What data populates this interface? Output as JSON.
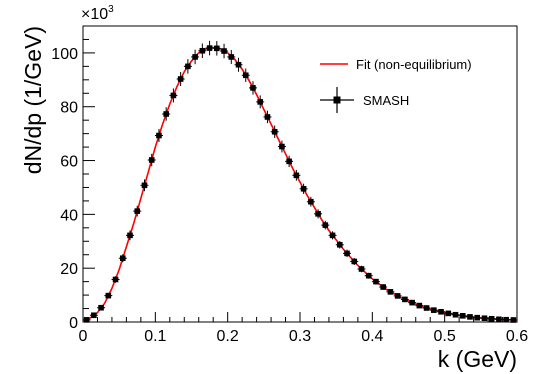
{
  "chart_data": {
    "type": "scatter",
    "title": "",
    "xlabel": "k (GeV)",
    "ylabel": "dN/dp (1/GeV)",
    "y_multiplier_label": "×10",
    "y_multiplier_exponent": "3",
    "xlim": [
      0,
      0.6
    ],
    "ylim": [
      0,
      110
    ],
    "x_ticks": [
      "0",
      "0.1",
      "0.2",
      "0.3",
      "0.4",
      "0.5",
      "0.6"
    ],
    "y_ticks": [
      "0",
      "20",
      "40",
      "60",
      "80",
      "100"
    ],
    "grid": false,
    "legend_placement": "top-right",
    "series": [
      {
        "name": "Fit (non-equilibrium)",
        "kind": "line",
        "color": "#ff0000",
        "x": [
          0.0,
          0.01,
          0.02,
          0.03,
          0.04,
          0.05,
          0.06,
          0.07,
          0.08,
          0.09,
          0.1,
          0.11,
          0.12,
          0.13,
          0.14,
          0.15,
          0.16,
          0.17,
          0.18,
          0.19,
          0.2,
          0.21,
          0.22,
          0.23,
          0.24,
          0.25,
          0.26,
          0.27,
          0.28,
          0.29,
          0.3,
          0.31,
          0.32,
          0.33,
          0.34,
          0.35,
          0.36,
          0.37,
          0.38,
          0.39,
          0.4,
          0.41,
          0.42,
          0.43,
          0.44,
          0.45,
          0.46,
          0.47,
          0.48,
          0.49,
          0.5,
          0.51,
          0.52,
          0.53,
          0.54,
          0.55,
          0.56,
          0.57,
          0.58,
          0.59,
          0.6
        ],
        "y": [
          0,
          1.5,
          3.5,
          7,
          12.5,
          19.5,
          28,
          36.5,
          46,
          55.5,
          65,
          73.5,
          81,
          87.5,
          93,
          97,
          100,
          101.5,
          102,
          101.5,
          100,
          97.5,
          94,
          89.5,
          84.5,
          79,
          73.5,
          68,
          62.5,
          57,
          52,
          47,
          42.5,
          38,
          34,
          30.5,
          27,
          24,
          21,
          18.5,
          16,
          14,
          12,
          10.5,
          9,
          7.8,
          6.6,
          5.6,
          4.8,
          4.1,
          3.5,
          3,
          2.5,
          2.1,
          1.8,
          1.5,
          1.3,
          1.1,
          0.9,
          0.8,
          0.7
        ]
      },
      {
        "name": "SMASH",
        "kind": "points",
        "color": "#000000",
        "x": [
          0.005,
          0.015,
          0.025,
          0.035,
          0.045,
          0.055,
          0.065,
          0.075,
          0.085,
          0.095,
          0.105,
          0.115,
          0.125,
          0.135,
          0.145,
          0.155,
          0.165,
          0.175,
          0.185,
          0.195,
          0.205,
          0.215,
          0.225,
          0.235,
          0.245,
          0.255,
          0.265,
          0.275,
          0.285,
          0.295,
          0.305,
          0.315,
          0.325,
          0.335,
          0.345,
          0.355,
          0.365,
          0.375,
          0.385,
          0.395,
          0.405,
          0.415,
          0.425,
          0.435,
          0.445,
          0.455,
          0.465,
          0.475,
          0.485,
          0.495,
          0.505,
          0.515,
          0.525,
          0.535,
          0.545,
          0.555,
          0.565,
          0.575,
          0.585,
          0.595
        ],
        "y": [
          0.8,
          2.5,
          5.3,
          9.8,
          15.8,
          23.7,
          32.2,
          41.2,
          50.8,
          60.2,
          69.3,
          77.3,
          84.2,
          90.3,
          95,
          98.5,
          100.8,
          101.8,
          101.7,
          100.7,
          98.5,
          95.6,
          91.7,
          87,
          81.8,
          76.2,
          70.7,
          65.2,
          59.7,
          54.5,
          49.5,
          44.7,
          40.2,
          36,
          32.2,
          28.7,
          25.5,
          22.5,
          19.7,
          17.2,
          15,
          13,
          11.2,
          9.7,
          8.4,
          7.2,
          6.1,
          5.2,
          4.4,
          3.8,
          3.2,
          2.7,
          2.3,
          1.9,
          1.6,
          1.4,
          1.2,
          1,
          0.85,
          0.75
        ],
        "y_err": [
          0.3,
          0.5,
          0.8,
          1.0,
          1.2,
          1.5,
          1.8,
          2.0,
          2.2,
          2.3,
          2.4,
          2.5,
          2.6,
          2.6,
          2.7,
          2.7,
          2.7,
          2.7,
          2.7,
          2.7,
          2.6,
          2.6,
          2.5,
          2.5,
          2.4,
          2.3,
          2.3,
          2.2,
          2.1,
          2.0,
          1.9,
          1.8,
          1.7,
          1.6,
          1.5,
          1.4,
          1.4,
          1.3,
          1.2,
          1.1,
          1.0,
          1.0,
          0.9,
          0.9,
          0.8,
          0.8,
          0.7,
          0.7,
          0.6,
          0.6,
          0.5,
          0.5,
          0.5,
          0.4,
          0.4,
          0.4,
          0.3,
          0.3,
          0.3,
          0.3
        ]
      }
    ]
  }
}
